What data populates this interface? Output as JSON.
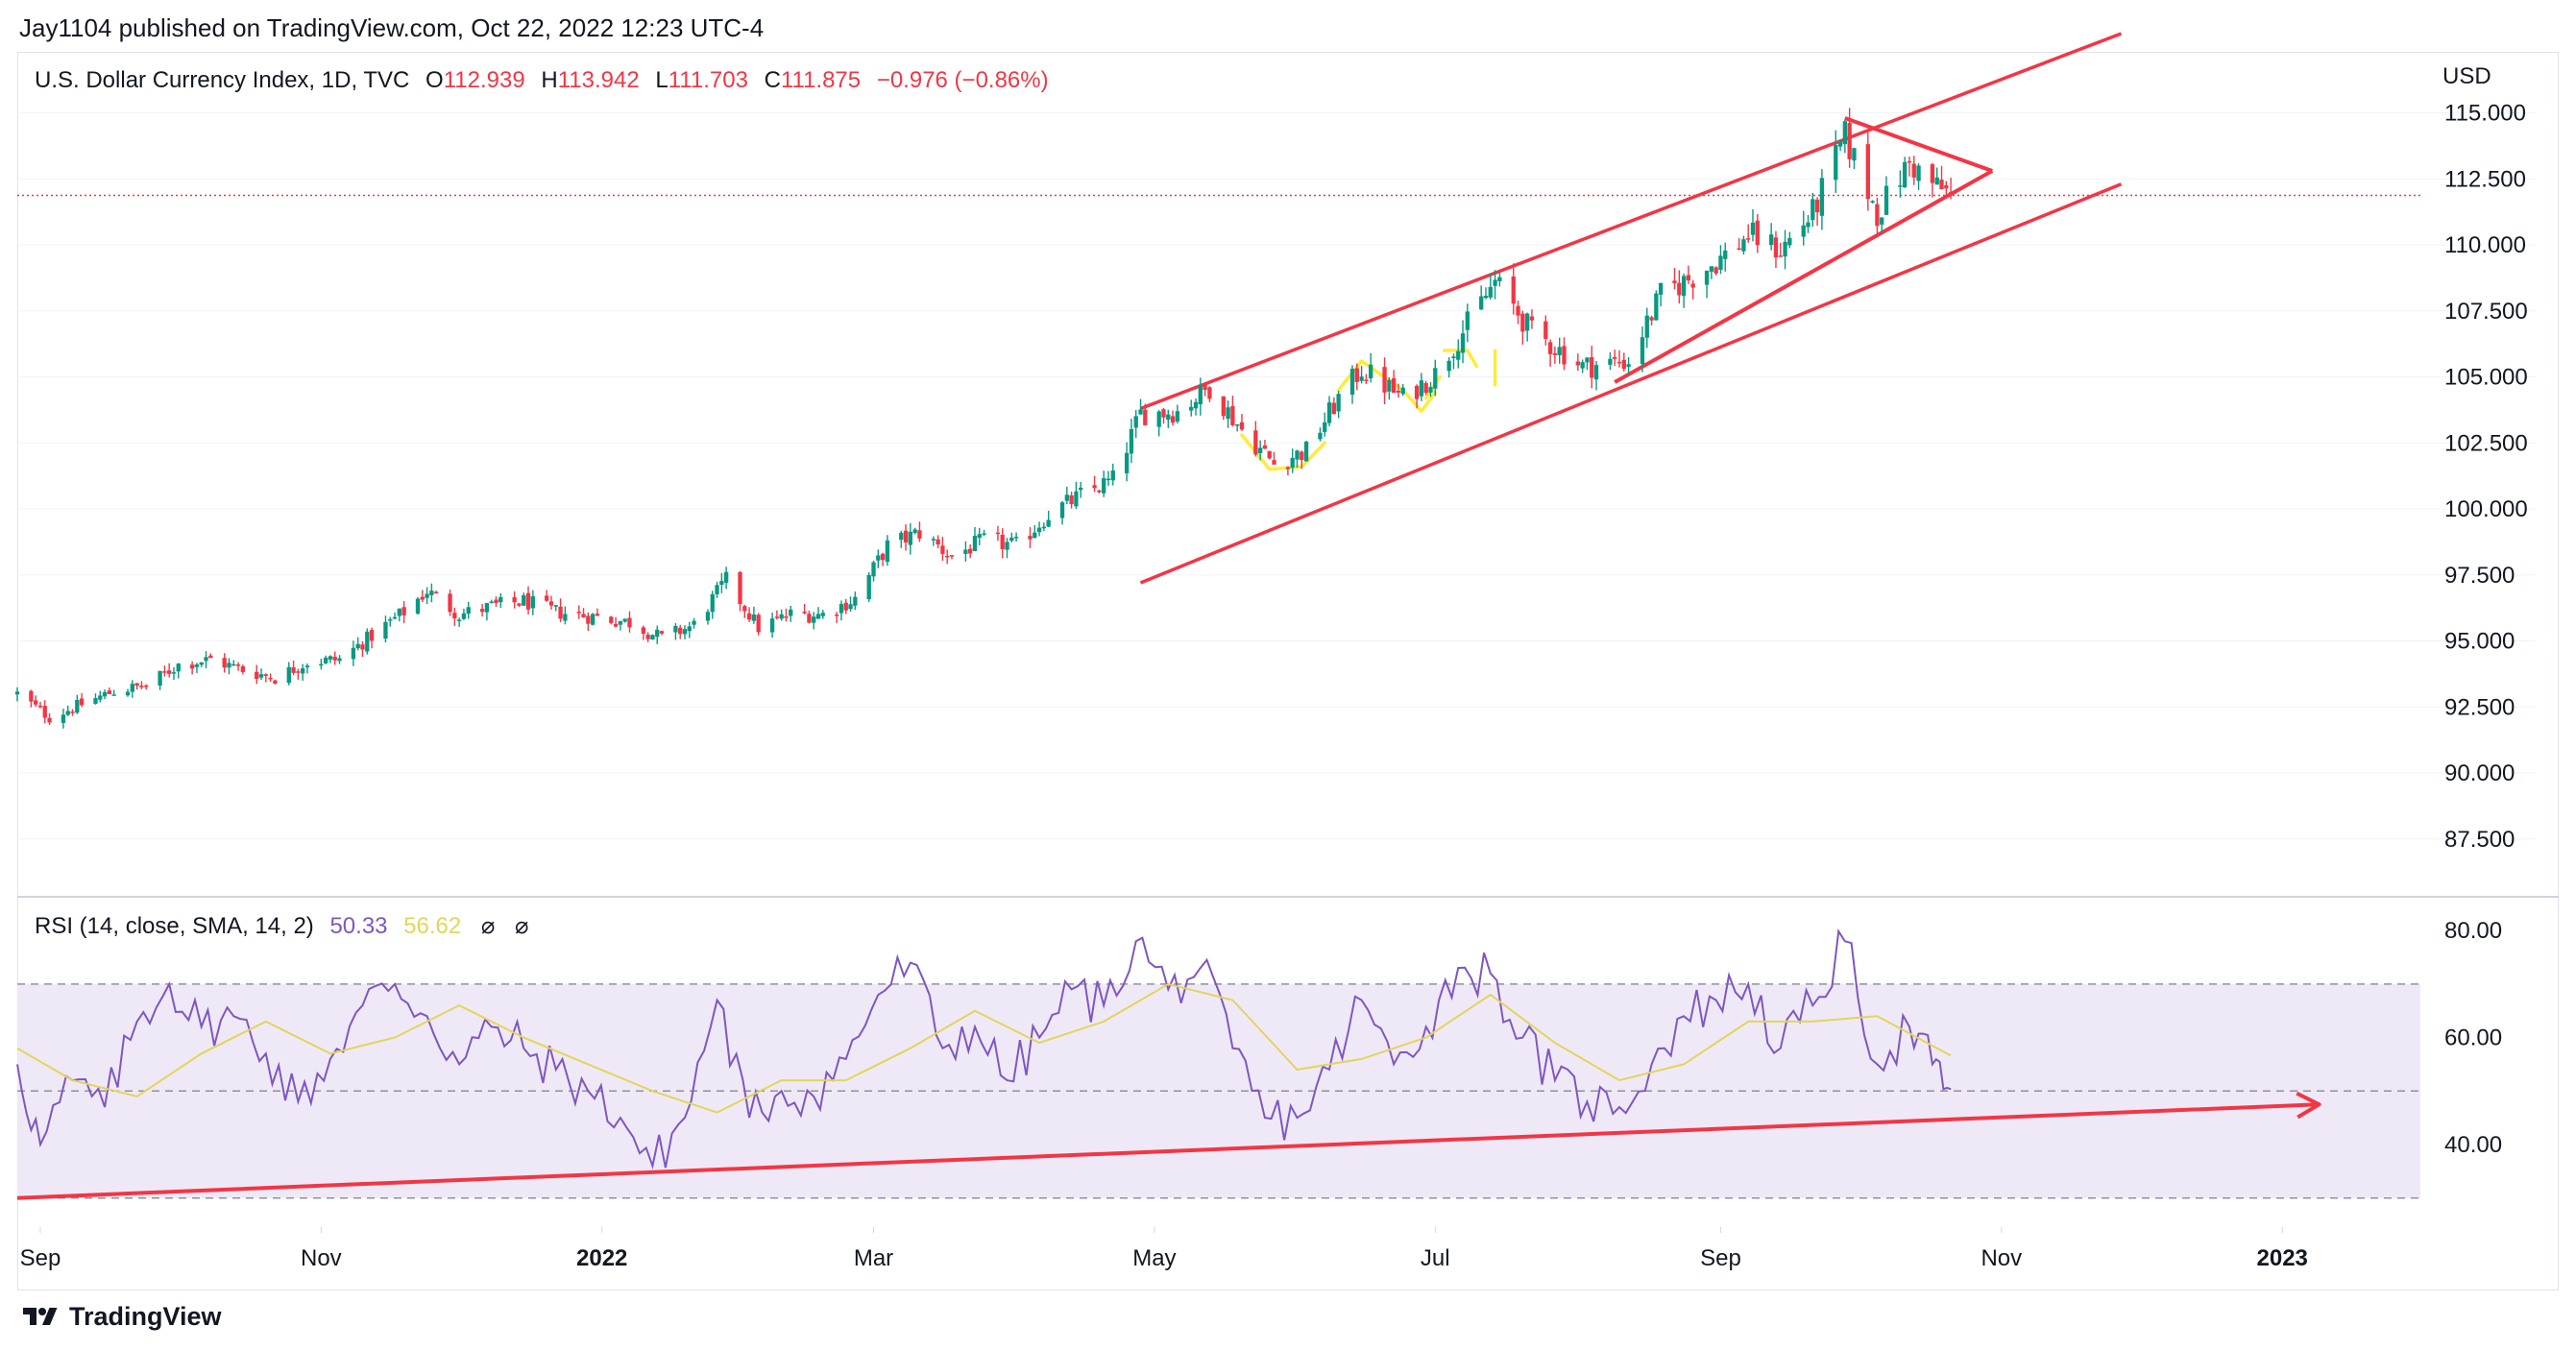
{
  "header": {
    "publisher": "Jay1104 published on TradingView.com, Oct 22, 2022 12:23 UTC-4"
  },
  "main_legend": {
    "title": "U.S. Dollar Currency Index, 1D, TVC",
    "open_key": "O",
    "open": "112.939",
    "high_key": "H",
    "high": "113.942",
    "low_key": "L",
    "low": "111.703",
    "close_key": "C",
    "close": "111.875",
    "change": "−0.976 (−0.86%)"
  },
  "rsi_legend": {
    "title": "RSI (14, close, SMA, 14, 2)",
    "rsi": "50.33",
    "rsi_ma": "56.62",
    "empty1": "⌀",
    "empty2": "⌀"
  },
  "currency": "USD",
  "footer": {
    "brand": "TradingView",
    "logo_icon": "tradingview-logo-icon"
  },
  "colors": {
    "up": "#089981",
    "down": "#f23645",
    "rsi": "#7e57c2",
    "rsi_ma": "#e2d55a",
    "trendline": "#f23645",
    "yellow_draw": "#ffeb3b",
    "rsi_band": "#ede7f6"
  },
  "chart_data": [
    {
      "type": "candlestick",
      "title": "U.S. Dollar Currency Index, 1D, TVC",
      "ylabel": "USD",
      "ylim": [
        86,
        116
      ],
      "yticks": [
        "87.500",
        "90.000",
        "92.500",
        "95.000",
        "97.500",
        "100.000",
        "102.500",
        "105.000",
        "107.500",
        "110.000",
        "112.500",
        "115.000"
      ],
      "xlim": [
        "2021-08-27",
        "2023-01-31"
      ],
      "xticks": [
        {
          "date": "2021-09-01",
          "label": "Sep",
          "bold": false
        },
        {
          "date": "2021-11-01",
          "label": "Nov",
          "bold": false
        },
        {
          "date": "2022-01-01",
          "label": "2022",
          "bold": true
        },
        {
          "date": "2022-03-01",
          "label": "Mar",
          "bold": false
        },
        {
          "date": "2022-05-01",
          "label": "May",
          "bold": false
        },
        {
          "date": "2022-07-01",
          "label": "Jul",
          "bold": false
        },
        {
          "date": "2022-09-01",
          "label": "Sep",
          "bold": false
        },
        {
          "date": "2022-11-01",
          "label": "Nov",
          "bold": false
        },
        {
          "date": "2023-01-01",
          "label": "2023",
          "bold": true
        }
      ],
      "last_price": 111.875,
      "close_path": [
        [
          "2021-08-27",
          93.0
        ],
        [
          "2021-09-03",
          92.1
        ],
        [
          "2021-09-10",
          92.6
        ],
        [
          "2021-09-17",
          93.1
        ],
        [
          "2021-09-24",
          93.3
        ],
        [
          "2021-10-01",
          94.1
        ],
        [
          "2021-10-08",
          94.3
        ],
        [
          "2021-10-15",
          93.9
        ],
        [
          "2021-10-22",
          93.6
        ],
        [
          "2021-10-29",
          94.2
        ],
        [
          "2021-11-05",
          94.3
        ],
        [
          "2021-11-12",
          95.2
        ],
        [
          "2021-11-19",
          96.1
        ],
        [
          "2021-11-24",
          96.9
        ],
        [
          "2021-12-01",
          96.0
        ],
        [
          "2021-12-08",
          96.3
        ],
        [
          "2021-12-15",
          96.5
        ],
        [
          "2021-12-22",
          96.1
        ],
        [
          "2021-12-31",
          95.9
        ],
        [
          "2022-01-07",
          95.7
        ],
        [
          "2022-01-14",
          95.1
        ],
        [
          "2022-01-21",
          95.6
        ],
        [
          "2022-01-28",
          97.3
        ],
        [
          "2022-02-04",
          95.5
        ],
        [
          "2022-02-11",
          96.0
        ],
        [
          "2022-02-18",
          96.0
        ],
        [
          "2022-02-25",
          96.6
        ],
        [
          "2022-03-04",
          98.6
        ],
        [
          "2022-03-11",
          99.1
        ],
        [
          "2022-03-18",
          98.2
        ],
        [
          "2022-03-25",
          98.8
        ],
        [
          "2022-04-01",
          98.6
        ],
        [
          "2022-04-08",
          99.8
        ],
        [
          "2022-04-15",
          100.5
        ],
        [
          "2022-04-22",
          101.1
        ],
        [
          "2022-04-28",
          103.6
        ],
        [
          "2022-05-06",
          103.7
        ],
        [
          "2022-05-13",
          104.6
        ],
        [
          "2022-05-20",
          103.0
        ],
        [
          "2022-05-27",
          101.7
        ],
        [
          "2022-06-03",
          102.2
        ],
        [
          "2022-06-10",
          104.2
        ],
        [
          "2022-06-15",
          105.3
        ],
        [
          "2022-06-24",
          104.2
        ],
        [
          "2022-07-01",
          105.1
        ],
        [
          "2022-07-08",
          107.0
        ],
        [
          "2022-07-14",
          108.6
        ],
        [
          "2022-07-22",
          106.7
        ],
        [
          "2022-07-29",
          105.9
        ],
        [
          "2022-08-02",
          105.4
        ],
        [
          "2022-08-12",
          105.6
        ],
        [
          "2022-08-19",
          108.1
        ],
        [
          "2022-08-26",
          108.8
        ],
        [
          "2022-09-02",
          109.6
        ],
        [
          "2022-09-07",
          110.4
        ],
        [
          "2022-09-14",
          109.8
        ],
        [
          "2022-09-21",
          111.2
        ],
        [
          "2022-09-28",
          114.1
        ],
        [
          "2022-10-05",
          111.2
        ],
        [
          "2022-10-12",
          113.1
        ],
        [
          "2022-10-17",
          112.3
        ],
        [
          "2022-10-21",
          111.875
        ]
      ]
    },
    {
      "type": "line",
      "title": "RSI (14, close, SMA, 14, 2)",
      "ylim": [
        26,
        82
      ],
      "yticks": [
        "40.00",
        "60.00",
        "80.00"
      ],
      "band": [
        30,
        70
      ],
      "midline": 50,
      "series": [
        {
          "name": "RSI",
          "points": [
            [
              "2021-08-27",
              55
            ],
            [
              "2021-09-01",
              40
            ],
            [
              "2021-09-08",
              52
            ],
            [
              "2021-09-15",
              47
            ],
            [
              "2021-09-22",
              63
            ],
            [
              "2021-09-29",
              70
            ],
            [
              "2021-10-06",
              62
            ],
            [
              "2021-10-13",
              64
            ],
            [
              "2021-10-20",
              57
            ],
            [
              "2021-10-27",
              48
            ],
            [
              "2021-11-03",
              56
            ],
            [
              "2021-11-10",
              66
            ],
            [
              "2021-11-17",
              70
            ],
            [
              "2021-11-24",
              64
            ],
            [
              "2021-12-01",
              55
            ],
            [
              "2021-12-08",
              62
            ],
            [
              "2021-12-15",
              58
            ],
            [
              "2021-12-22",
              54
            ],
            [
              "2021-12-29",
              50
            ],
            [
              "2022-01-05",
              45
            ],
            [
              "2022-01-12",
              36
            ],
            [
              "2022-01-19",
              45
            ],
            [
              "2022-01-26",
              67
            ],
            [
              "2022-02-02",
              45
            ],
            [
              "2022-02-09",
              50
            ],
            [
              "2022-02-16",
              49
            ],
            [
              "2022-02-23",
              56
            ],
            [
              "2022-03-02",
              68
            ],
            [
              "2022-03-09",
              74
            ],
            [
              "2022-03-16",
              58
            ],
            [
              "2022-03-23",
              62
            ],
            [
              "2022-03-30",
              52
            ],
            [
              "2022-04-06",
              60
            ],
            [
              "2022-04-13",
              69
            ],
            [
              "2022-04-20",
              66
            ],
            [
              "2022-04-27",
              78
            ],
            [
              "2022-05-04",
              69
            ],
            [
              "2022-05-11",
              73
            ],
            [
              "2022-05-18",
              58
            ],
            [
              "2022-05-25",
              45
            ],
            [
              "2022-06-01",
              45
            ],
            [
              "2022-06-08",
              54
            ],
            [
              "2022-06-15",
              67
            ],
            [
              "2022-06-22",
              55
            ],
            [
              "2022-06-29",
              62
            ],
            [
              "2022-07-06",
              73
            ],
            [
              "2022-07-13",
              72
            ],
            [
              "2022-07-20",
              60
            ],
            [
              "2022-07-27",
              52
            ],
            [
              "2022-08-03",
              48
            ],
            [
              "2022-08-10",
              47
            ],
            [
              "2022-08-17",
              55
            ],
            [
              "2022-08-24",
              64
            ],
            [
              "2022-08-31",
              67
            ],
            [
              "2022-09-07",
              70
            ],
            [
              "2022-09-14",
              58
            ],
            [
              "2022-09-21",
              66
            ],
            [
              "2022-09-28",
              78
            ],
            [
              "2022-10-05",
              55
            ],
            [
              "2022-10-12",
              62
            ],
            [
              "2022-10-17",
              55
            ],
            [
              "2022-10-21",
              50.33
            ]
          ]
        },
        {
          "name": "RSI MA",
          "points": [
            [
              "2021-08-27",
              58
            ],
            [
              "2021-09-08",
              52
            ],
            [
              "2021-09-22",
              49
            ],
            [
              "2021-10-06",
              57
            ],
            [
              "2021-10-20",
              63
            ],
            [
              "2021-11-03",
              57
            ],
            [
              "2021-11-17",
              60
            ],
            [
              "2021-12-01",
              66
            ],
            [
              "2021-12-15",
              60
            ],
            [
              "2021-12-29",
              55
            ],
            [
              "2022-01-12",
              50
            ],
            [
              "2022-01-26",
              46
            ],
            [
              "2022-02-09",
              52
            ],
            [
              "2022-02-23",
              52
            ],
            [
              "2022-03-09",
              58
            ],
            [
              "2022-03-23",
              65
            ],
            [
              "2022-04-06",
              59
            ],
            [
              "2022-04-20",
              63
            ],
            [
              "2022-05-04",
              70
            ],
            [
              "2022-05-18",
              67
            ],
            [
              "2022-06-01",
              54
            ],
            [
              "2022-06-15",
              56
            ],
            [
              "2022-06-29",
              60
            ],
            [
              "2022-07-13",
              68
            ],
            [
              "2022-07-27",
              59
            ],
            [
              "2022-08-10",
              52
            ],
            [
              "2022-08-24",
              55
            ],
            [
              "2022-09-07",
              63
            ],
            [
              "2022-09-21",
              63
            ],
            [
              "2022-10-05",
              64
            ],
            [
              "2022-10-21",
              56.62
            ]
          ]
        }
      ]
    }
  ],
  "drawings": {
    "channel_upper": [
      [
        "2022-04-28",
        103.8
      ],
      [
        "2022-11-27",
        118.0
      ]
    ],
    "channel_lower": [
      [
        "2022-04-28",
        97.2
      ],
      [
        "2022-11-27",
        112.3
      ]
    ],
    "wedge_top": [
      [
        "2022-09-28",
        114.8
      ],
      [
        "2022-10-30",
        112.8
      ]
    ],
    "wedge_bottom": [
      [
        "2022-08-09",
        104.8
      ],
      [
        "2022-10-30",
        112.8
      ]
    ],
    "rsi_trend": [
      [
        "2021-08-27",
        30
      ],
      [
        "2023-01-09",
        47.5
      ]
    ]
  }
}
